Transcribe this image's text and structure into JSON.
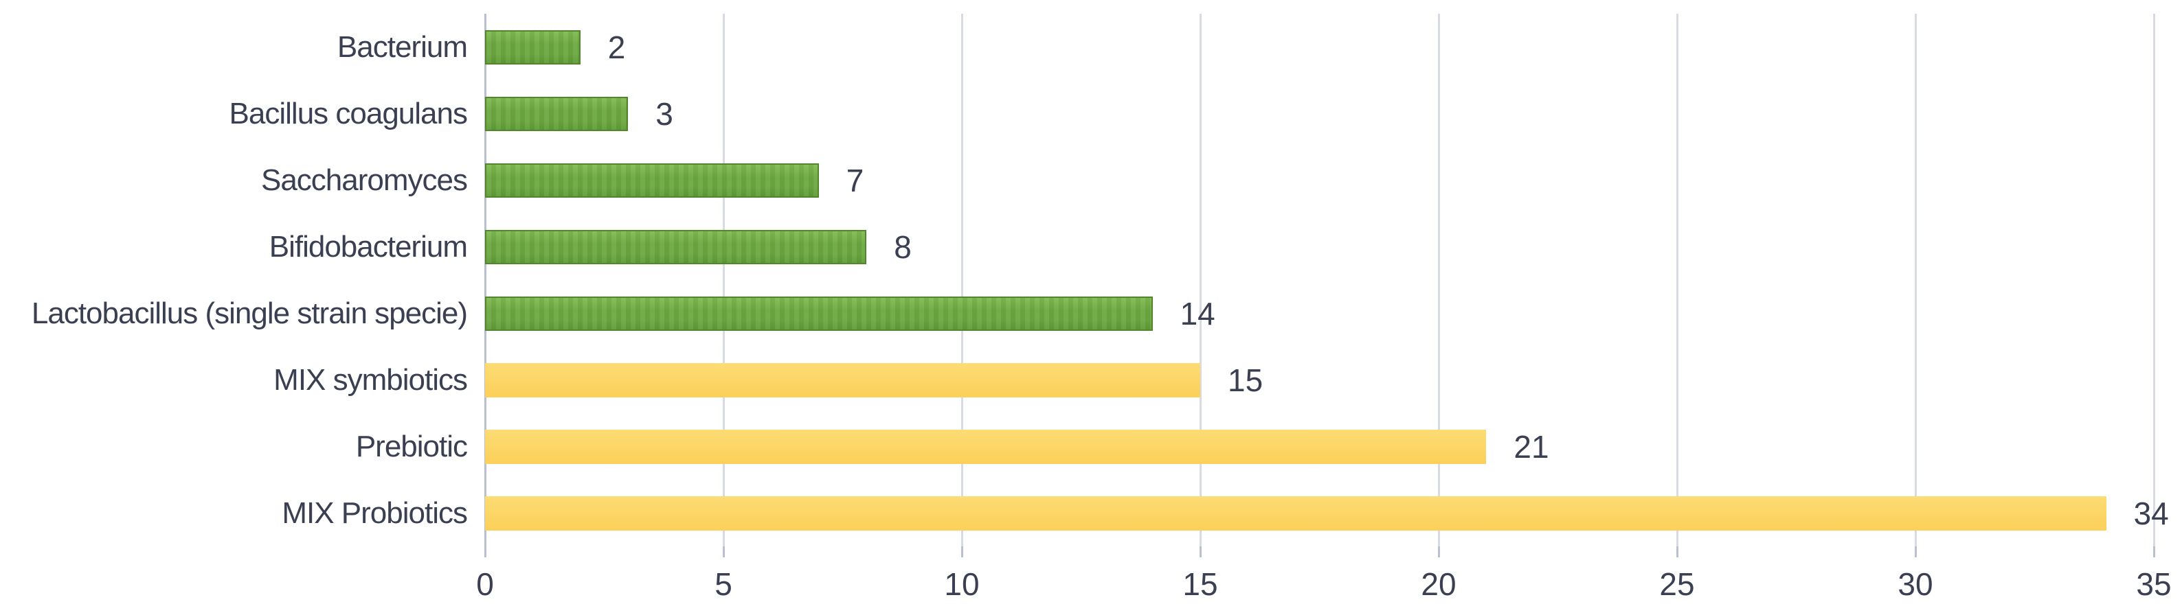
{
  "chart_data": {
    "type": "bar",
    "orientation": "horizontal",
    "title": "",
    "xlabel": "",
    "ylabel": "",
    "categories": [
      "Bacterium",
      "Bacillus coagulans",
      "Saccharomyces",
      "Bifidobacterium",
      "Lactobacillus (single strain specie)",
      "MIX symbiotics",
      "Prebiotic",
      "MIX Probiotics"
    ],
    "values": [
      2,
      3,
      7,
      8,
      14,
      15,
      21,
      34
    ],
    "data_labels": [
      "2",
      "3",
      "7",
      "8",
      "14",
      "15",
      "21",
      "34"
    ],
    "bar_color_groups": [
      "green",
      "green",
      "green",
      "green",
      "green",
      "yellow",
      "yellow",
      "yellow"
    ],
    "xlim": [
      0,
      35
    ],
    "x_ticks": [
      0,
      5,
      10,
      15,
      20,
      25,
      30,
      35
    ],
    "grid": "vertical-gridlines-on",
    "legend": "none",
    "colors": {
      "green_light": "#7fbb52",
      "green_mid": "#6ca840",
      "green_dark": "#5f9c37",
      "green_border": "#53862c",
      "yellow_light": "#fddc74",
      "yellow_mid": "#fcd565",
      "yellow_dark": "#fbcf5a",
      "gridline": "#d8dbe3",
      "axis_line": "#b9c0cf",
      "text": "#3a3f51",
      "background": "#ffffff"
    }
  }
}
